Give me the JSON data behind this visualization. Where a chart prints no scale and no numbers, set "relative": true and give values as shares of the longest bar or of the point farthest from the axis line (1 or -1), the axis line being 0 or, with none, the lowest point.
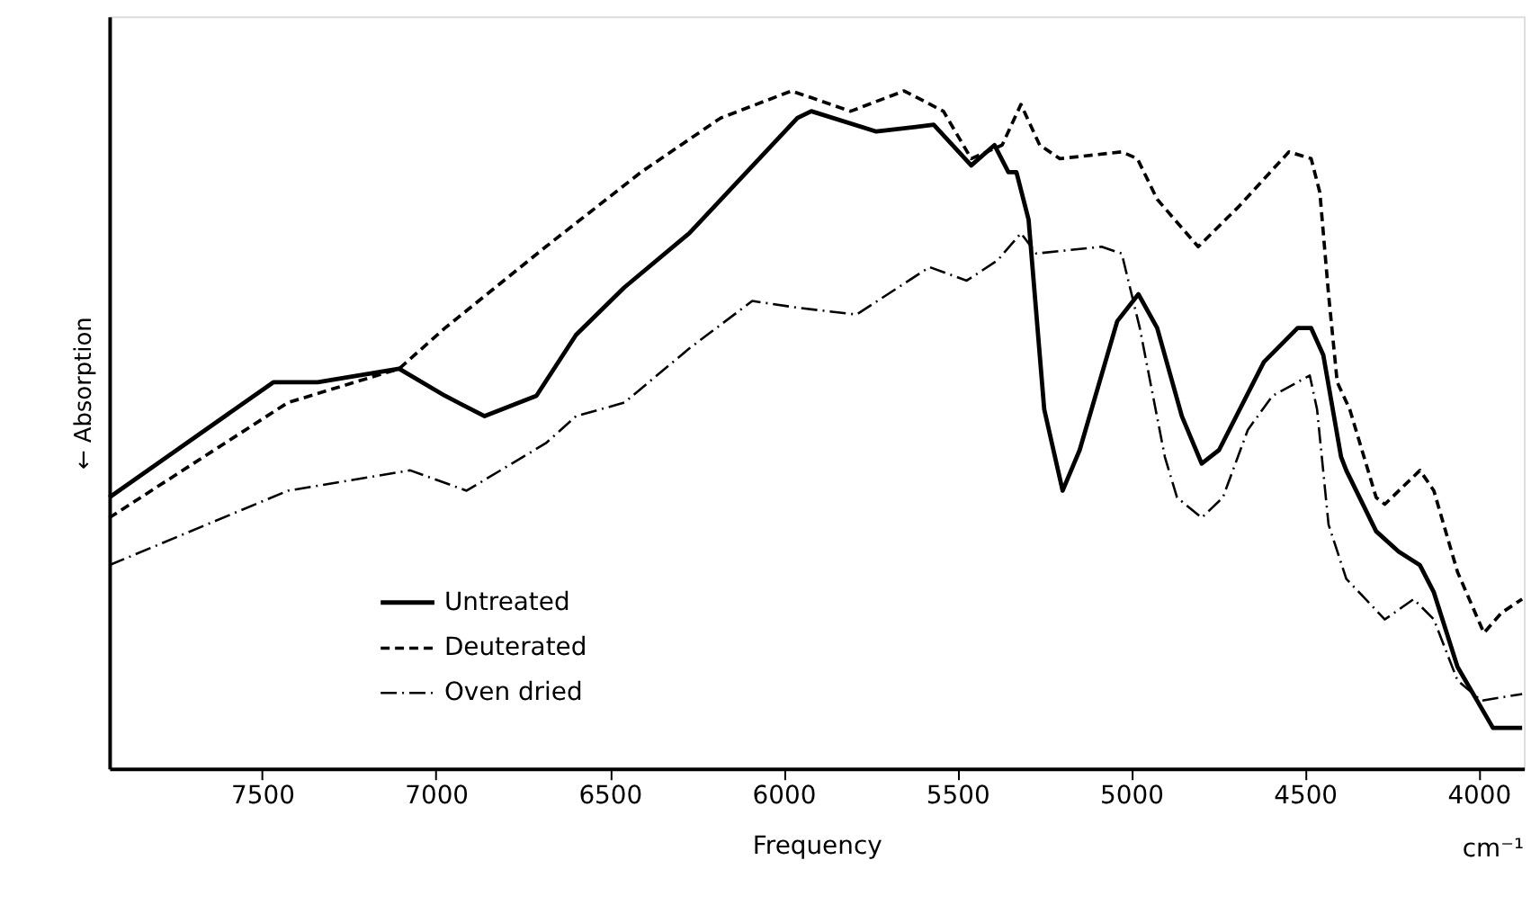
{
  "chart_data": {
    "type": "line",
    "xlabel": "Frequency",
    "ylabel": "← Absorption",
    "relative": true,
    "xlim": [
      7940,
      3870
    ],
    "xticks": [
      7500,
      7000,
      6500,
      6000,
      5500,
      5000,
      4500,
      4000
    ],
    "legend": "left",
    "grid": false,
    "marker": "none",
    "annotations": [
      "cm⁻¹"
    ],
    "series": [
      {
        "name": "Untreated",
        "color": "#000000",
        "line_style": "solid",
        "x": [
          7940,
          7468,
          7340,
          7106,
          6974,
          6860,
          6711,
          6597,
          6458,
          6271,
          5960,
          5920,
          5733,
          5568,
          5460,
          5393,
          5353,
          5330,
          5295,
          5250,
          5197,
          5148,
          5040,
          4979,
          4925,
          4854,
          4797,
          4747,
          4618,
          4521,
          4482,
          4447,
          4396,
          4381,
          4295,
          4230,
          4169,
          4129,
          4061,
          3959,
          3875
        ],
        "values": [
          0.4,
          0.57,
          0.57,
          0.59,
          0.55,
          0.52,
          0.55,
          0.64,
          0.71,
          0.79,
          0.96,
          0.97,
          0.94,
          0.95,
          0.89,
          0.92,
          0.88,
          0.88,
          0.81,
          0.53,
          0.41,
          0.47,
          0.66,
          0.7,
          0.65,
          0.52,
          0.45,
          0.47,
          0.6,
          0.65,
          0.65,
          0.61,
          0.46,
          0.44,
          0.35,
          0.32,
          0.3,
          0.26,
          0.15,
          0.06,
          0.06
        ]
      },
      {
        "name": "Deuterated",
        "color": "#000000",
        "line_style": "dashed",
        "x": [
          7940,
          7426,
          7106,
          6974,
          6684,
          6410,
          6181,
          5977,
          5807,
          5653,
          5540,
          5460,
          5371,
          5317,
          5263,
          5205,
          5027,
          4982,
          4925,
          4807,
          4689,
          4546,
          4482,
          4457,
          4432,
          4407,
          4371,
          4295,
          4270,
          4169,
          4129,
          4061,
          3985,
          3934,
          3875
        ],
        "values": [
          0.37,
          0.54,
          0.59,
          0.65,
          0.77,
          0.88,
          0.96,
          1.0,
          0.97,
          1.0,
          0.97,
          0.9,
          0.92,
          0.98,
          0.92,
          0.9,
          0.91,
          0.9,
          0.84,
          0.77,
          0.83,
          0.91,
          0.9,
          0.85,
          0.7,
          0.57,
          0.53,
          0.4,
          0.39,
          0.44,
          0.41,
          0.29,
          0.2,
          0.23,
          0.25
        ]
      },
      {
        "name": "Oven dried",
        "color": "#000000",
        "line_style": "dashdot",
        "x": [
          7940,
          7426,
          7074,
          6912,
          6684,
          6597,
          6458,
          6271,
          6090,
          5960,
          5790,
          5580,
          5473,
          5384,
          5317,
          5273,
          5085,
          5027,
          4975,
          4903,
          4868,
          4797,
          4736,
          4664,
          4593,
          4486,
          4465,
          4432,
          4381,
          4270,
          4187,
          4129,
          4061,
          3992,
          3875
        ],
        "values": [
          0.3,
          0.41,
          0.44,
          0.41,
          0.48,
          0.52,
          0.54,
          0.62,
          0.69,
          0.68,
          0.67,
          0.74,
          0.72,
          0.75,
          0.79,
          0.76,
          0.77,
          0.76,
          0.65,
          0.46,
          0.4,
          0.37,
          0.4,
          0.5,
          0.55,
          0.58,
          0.53,
          0.36,
          0.28,
          0.22,
          0.25,
          0.22,
          0.13,
          0.1,
          0.11
        ]
      }
    ]
  }
}
